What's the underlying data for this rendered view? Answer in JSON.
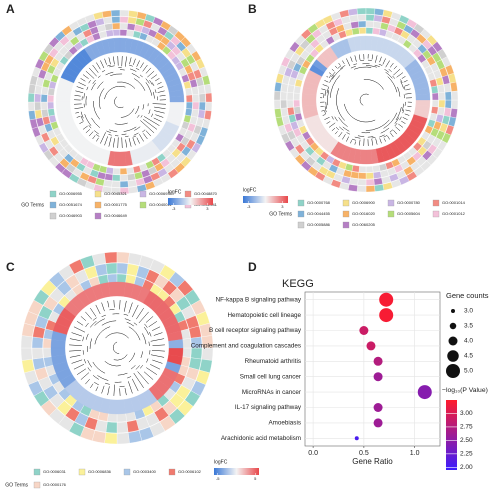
{
  "panels": [
    {
      "label": "A",
      "go_title": "GO Terms",
      "fc_title": "logFC",
      "fc_lim": [
        -4,
        4
      ],
      "fc_ticks": [
        -3,
        3
      ],
      "fc_colors": [
        "#3a78d6",
        "#f4f4f4",
        "#e8474a"
      ],
      "go_items": [
        {
          "label": "GO:0006955",
          "color": "#8fd3c8"
        },
        {
          "label": "GO:0045321",
          "color": "#f6e08a"
        },
        {
          "label": "GO:0006935",
          "color": "#c9b6e4"
        },
        {
          "label": "GO:0048870",
          "color": "#f28b82"
        },
        {
          "label": "GO:0051674",
          "color": "#7fb2d9"
        },
        {
          "label": "GO:0001775",
          "color": "#f7b267"
        },
        {
          "label": "GO:0040011",
          "color": "#b5dd7a"
        },
        {
          "label": "GO:0002541",
          "color": "#f3c1d9"
        },
        {
          "label": "GO:0046903",
          "color": "#d0d0d0"
        },
        {
          "label": "GO:0046649",
          "color": "#b57fc4"
        }
      ]
    },
    {
      "label": "B",
      "go_title": "GO Terms",
      "fc_title": "logFC",
      "fc_lim": [
        -4,
        4
      ],
      "fc_ticks": [
        -3,
        3
      ],
      "fc_colors": [
        "#3a78d6",
        "#f4f4f4",
        "#e8474a"
      ],
      "go_items": [
        {
          "label": "GO:0000768",
          "color": "#8fd3c8"
        },
        {
          "label": "GO:0006900",
          "color": "#f6e08a"
        },
        {
          "label": "GO:0000780",
          "color": "#c9b6e4"
        },
        {
          "label": "GO:0001014",
          "color": "#f28b82"
        },
        {
          "label": "GO:0044455",
          "color": "#7fb2d9"
        },
        {
          "label": "GO:0016020",
          "color": "#f7b267"
        },
        {
          "label": "GO:0005604",
          "color": "#b5dd7a"
        },
        {
          "label": "GO:0001012",
          "color": "#f3c1d9"
        },
        {
          "label": "GO:0005886",
          "color": "#d0d0d0"
        },
        {
          "label": "GO:0060205",
          "color": "#b57fc4"
        }
      ]
    },
    {
      "label": "C",
      "go_title": "GO Terms",
      "fc_title": "logFC",
      "fc_lim": [
        -6,
        6
      ],
      "fc_ticks": [
        -5,
        5
      ],
      "fc_colors": [
        "#3a78d6",
        "#f4f4f4",
        "#e8474a"
      ],
      "go_items": [
        {
          "label": "GO:0006031",
          "color": "#8fd3c8"
        },
        {
          "label": "GO:0006836",
          "color": "#fbf19a"
        },
        {
          "label": "GO:0003400",
          "color": "#a9c6e8"
        },
        {
          "label": "GO:0006102",
          "color": "#f07a6e"
        },
        {
          "label": "GO:0000176",
          "color": "#f7d6c6"
        }
      ]
    }
  ],
  "panel_d_label": "D",
  "chart_data": {
    "type": "dot",
    "title": "KEGG",
    "x_label": "Gene Ratio",
    "categories": [
      "NF-kappa B signaling pathway",
      "Hematopoietic cell lineage",
      "B cell receptor signaling pathway",
      "Complement and coagulation cascades",
      "Rheumatoid arthritis",
      "Small cell lung cancer",
      "MicroRNAs in cancer",
      "IL-17 signaling pathway",
      "Amoebiasis",
      "Arachidonic acid metabolism"
    ],
    "values": [
      0.72,
      0.72,
      0.5,
      0.57,
      0.64,
      0.64,
      1.1,
      0.64,
      0.64,
      0.43
    ],
    "counts": [
      5,
      5,
      4,
      4,
      4,
      4,
      5,
      4,
      4,
      3
    ],
    "pvalues": [
      3.2,
      3.2,
      2.9,
      2.9,
      2.75,
      2.6,
      2.45,
      2.6,
      2.6,
      2.05
    ],
    "xlim": [
      -0.08,
      1.25
    ],
    "xticks": [
      {
        "value": 0,
        "label": "0.0"
      },
      {
        "value": 0.5,
        "label": "0.5"
      },
      {
        "value": 1,
        "label": "1.0"
      }
    ],
    "grid": true,
    "size_title": "Gene counts",
    "size_ticks": [
      {
        "value": 3,
        "label": "3.0"
      },
      {
        "value": 3.5,
        "label": "3.5"
      },
      {
        "value": 4,
        "label": "4.0"
      },
      {
        "value": 4.5,
        "label": "4.5"
      },
      {
        "value": 5,
        "label": "5.0"
      }
    ],
    "color_title": "−log₁₀(P Value)",
    "clim": [
      1.95,
      3.25
    ],
    "color_ticks": [
      {
        "value": 3,
        "label": "3.00"
      },
      {
        "value": 2.75,
        "label": "2.75"
      },
      {
        "value": 2.5,
        "label": "2.50"
      },
      {
        "value": 2.25,
        "label": "2.25"
      },
      {
        "value": 2,
        "label": "2.00"
      }
    ],
    "color_low": "#3a1cff",
    "color_high": "#ff1c2c"
  }
}
